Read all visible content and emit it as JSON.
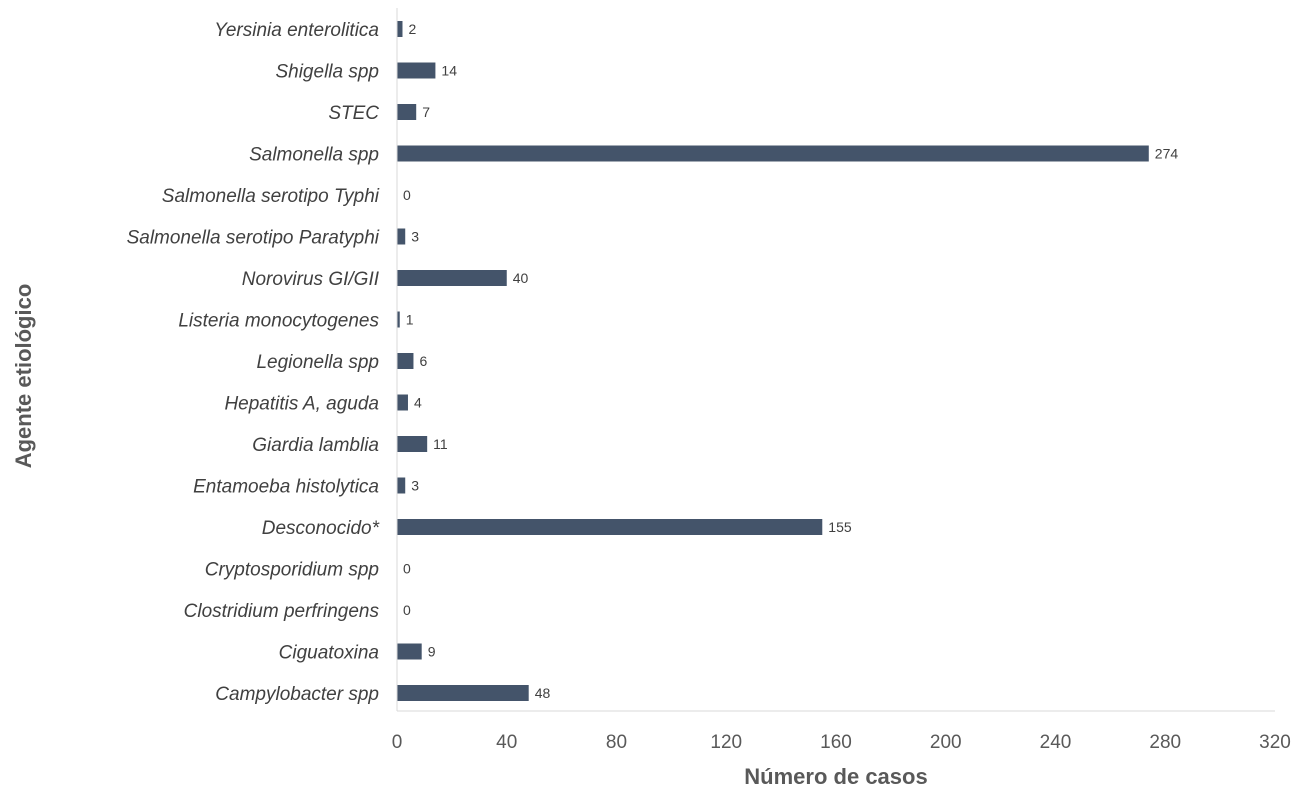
{
  "chart_data": {
    "type": "bar",
    "orientation": "horizontal",
    "categories": [
      "Yersinia enterolitica",
      "Shigella spp",
      "STEC",
      "Salmonella spp",
      "Salmonella serotipo Typhi",
      "Salmonella serotipo Paratyphi",
      "Norovirus GI/GII",
      "Listeria monocytogenes",
      "Legionella spp",
      "Hepatitis A, aguda",
      "Giardia lamblia",
      "Entamoeba histolytica",
      "Desconocido*",
      "Cryptosporidium spp",
      "Clostridium perfringens",
      "Ciguatoxina",
      "Campylobacter spp"
    ],
    "values": [
      2,
      14,
      7,
      274,
      0,
      3,
      40,
      1,
      6,
      4,
      11,
      3,
      155,
      0,
      0,
      9,
      48
    ],
    "xlabel": "Número de casos",
    "ylabel": "Agente etiológico",
    "xlim": [
      0,
      320
    ],
    "xticks": [
      0,
      40,
      80,
      120,
      160,
      200,
      240,
      280,
      320
    ],
    "grid": false,
    "data_labels": true,
    "bar_color": "#44546a",
    "text_color": "#404040"
  }
}
